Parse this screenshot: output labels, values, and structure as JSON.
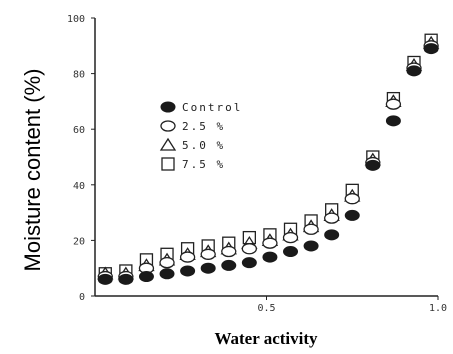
{
  "chart_data": {
    "type": "scatter",
    "xlabel": "Water activity",
    "ylabel": "Moisture content (%)",
    "xlim": [
      0,
      1.0
    ],
    "ylim": [
      0,
      100
    ],
    "x_ticks": [
      "0.5",
      "1.0"
    ],
    "y_ticks": [
      "0",
      "20",
      "40",
      "60",
      "80",
      "100"
    ],
    "legend_placement": "center-left",
    "series": [
      {
        "name": "Control",
        "marker": "filled-circle",
        "x": [
          0.03,
          0.09,
          0.15,
          0.21,
          0.27,
          0.33,
          0.39,
          0.45,
          0.51,
          0.57,
          0.63,
          0.69,
          0.75,
          0.81,
          0.87,
          0.93,
          0.98
        ],
        "y": [
          6,
          6,
          7,
          8,
          9,
          10,
          11,
          12,
          14,
          16,
          18,
          22,
          29,
          47,
          63,
          81,
          89
        ]
      },
      {
        "name": "2.5 %",
        "marker": "open-circle",
        "x": [
          0.03,
          0.09,
          0.15,
          0.21,
          0.27,
          0.33,
          0.39,
          0.45,
          0.51,
          0.57,
          0.63,
          0.69,
          0.75,
          0.81,
          0.87,
          0.93,
          0.98
        ],
        "y": [
          7,
          7,
          10,
          12,
          14,
          15,
          16,
          17,
          19,
          21,
          24,
          28,
          35,
          48,
          69,
          82,
          90
        ]
      },
      {
        "name": "5.0 %",
        "marker": "open-triangle",
        "x": [
          0.03,
          0.09,
          0.15,
          0.21,
          0.27,
          0.33,
          0.39,
          0.45,
          0.51,
          0.57,
          0.63,
          0.69,
          0.75,
          0.81,
          0.87,
          0.93,
          0.98
        ],
        "y": [
          8,
          8,
          11,
          13,
          15,
          16,
          17,
          19,
          20,
          22,
          25,
          29,
          36,
          49,
          70,
          83,
          91
        ]
      },
      {
        "name": "7.5 %",
        "marker": "open-square",
        "x": [
          0.03,
          0.09,
          0.15,
          0.21,
          0.27,
          0.33,
          0.39,
          0.45,
          0.51,
          0.57,
          0.63,
          0.69,
          0.75,
          0.81,
          0.87,
          0.93,
          0.98
        ],
        "y": [
          8,
          9,
          13,
          15,
          17,
          18,
          19,
          21,
          22,
          24,
          27,
          31,
          38,
          50,
          71,
          84,
          92
        ]
      }
    ]
  },
  "legend": {
    "items": [
      {
        "label": "Control",
        "marker": "filled-circle"
      },
      {
        "label": "2.5 %",
        "marker": "open-circle"
      },
      {
        "label": "5.0 %",
        "marker": "open-triangle"
      },
      {
        "label": "7.5 %",
        "marker": "open-square"
      }
    ]
  }
}
